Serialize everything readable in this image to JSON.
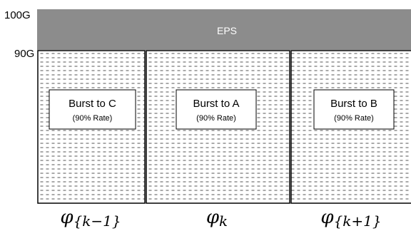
{
  "y_axis": {
    "top_label": "100G",
    "mid_label": "90G"
  },
  "eps_band": {
    "label": "EPS",
    "color": "#8c8c8c"
  },
  "slots": [
    {
      "title": "Burst to C",
      "rate": "(90% Rate)",
      "phase_symbol": "φ",
      "phase_index": "{k−1}"
    },
    {
      "title": "Burst to A",
      "rate": "(90% Rate)",
      "phase_symbol": "φ",
      "phase_index": "k"
    },
    {
      "title": "Burst to B",
      "rate": "(90% Rate)",
      "phase_symbol": "φ",
      "phase_index": "{k+1}"
    }
  ]
}
